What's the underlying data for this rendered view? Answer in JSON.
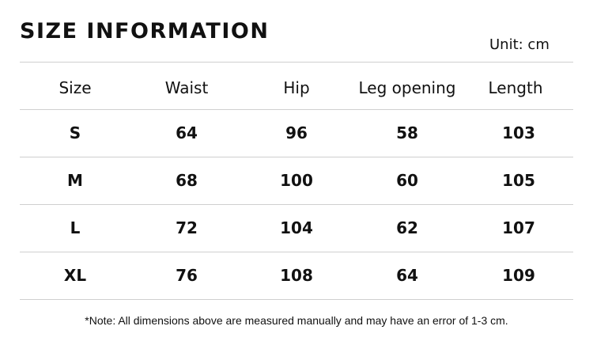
{
  "title": "SIZE INFORMATION",
  "unit": "Unit: cm",
  "headers": [
    "Size",
    "Waist",
    "Hip",
    "Leg opening",
    "Length"
  ],
  "rows": [
    [
      "S",
      "64",
      "96",
      "58",
      "103"
    ],
    [
      "M",
      "68",
      "100",
      "60",
      "105"
    ],
    [
      "L",
      "72",
      "104",
      "62",
      "107"
    ],
    [
      "XL",
      "76",
      "108",
      "64",
      "109"
    ]
  ],
  "note": "*Note: All dimensions above are measured manually and may have an error of 1-3 cm."
}
